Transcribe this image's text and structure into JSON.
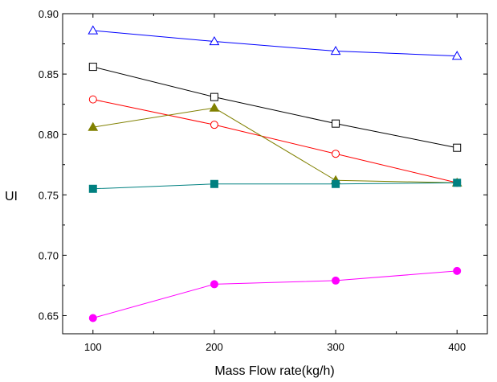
{
  "chart_data": {
    "type": "line",
    "title": "",
    "xlabel": "Mass Flow rate(kg/h)",
    "ylabel": "UI",
    "x": [
      100,
      200,
      300,
      400
    ],
    "x_tick_labels": [
      "100",
      "200",
      "300",
      "400"
    ],
    "y_tick_labels": [
      "0.65",
      "0.70",
      "0.75",
      "0.80",
      "0.85",
      "0.90"
    ],
    "xlim": [
      75,
      425
    ],
    "ylim": [
      0.635,
      0.9
    ],
    "grid": false,
    "series": [
      {
        "color": "#0000ff",
        "marker": "triangle-open",
        "values": [
          0.886,
          0.877,
          0.869,
          0.865
        ]
      },
      {
        "color": "#000000",
        "marker": "square-open",
        "values": [
          0.856,
          0.831,
          0.809,
          0.789
        ]
      },
      {
        "color": "#ff0000",
        "marker": "circle-open",
        "values": [
          0.829,
          0.808,
          0.784,
          0.76
        ]
      },
      {
        "color": "#808000",
        "marker": "triangle-filled",
        "values": [
          0.806,
          0.822,
          0.762,
          0.76
        ]
      },
      {
        "color": "#008080",
        "marker": "square-filled",
        "values": [
          0.755,
          0.759,
          0.759,
          0.76
        ]
      },
      {
        "color": "#ff00ff",
        "marker": "circle-filled",
        "values": [
          0.648,
          0.676,
          0.679,
          0.687
        ]
      }
    ]
  }
}
